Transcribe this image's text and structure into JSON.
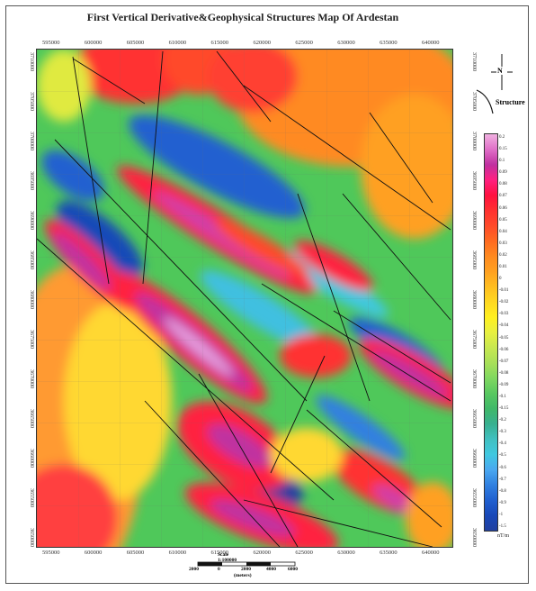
{
  "title": "First Vertical Derivative&Geophysical Structures Map Of Ardestan",
  "x_ticks": [
    "595000",
    "600000",
    "605000",
    "610000",
    "615000",
    "620000",
    "625000",
    "630000",
    "635000",
    "640000"
  ],
  "y_ticks": [
    "3710000",
    "3705000",
    "3700000",
    "3695000",
    "3690000",
    "3685000",
    "3680000",
    "3675000",
    "3670000",
    "3665000",
    "3660000",
    "3655000",
    "3650000"
  ],
  "legend": {
    "north": "N",
    "structure_label": "Structure"
  },
  "colorbar": {
    "unit": "nT/m",
    "labels": [
      "0.2",
      "0.15",
      "0.1",
      "0.09",
      "0.08",
      "0.07",
      "0.06",
      "0.05",
      "0.04",
      "0.03",
      "0.02",
      "0.01",
      "0",
      "-0.01",
      "-0.02",
      "-0.03",
      "-0.04",
      "-0.05",
      "-0.06",
      "-0.07",
      "-0.08",
      "-0.09",
      "-0.1",
      "-0.15",
      "-0.2",
      "-0.3",
      "-0.4",
      "-0.5",
      "-0.6",
      "-0.7",
      "-0.8",
      "-0.9",
      "-1",
      "-1.5"
    ],
    "colors": [
      "#f0b0e0",
      "#e070c8",
      "#c030a0",
      "#ff2080",
      "#ff1040",
      "#ff3030",
      "#ff4a2a",
      "#ff6a20",
      "#ff8a20",
      "#ffa020",
      "#ffbe20",
      "#ffd820",
      "#fff020",
      "#e8f040",
      "#c8e850",
      "#a8e058",
      "#80d860",
      "#58c860",
      "#40b868",
      "#38b090",
      "#40c0c0",
      "#40c8e0",
      "#4aa8f0",
      "#3080e0",
      "#2060d0",
      "#1848b8",
      "#2040a0"
    ]
  },
  "scale": {
    "title": "Scale 1:100000",
    "labels": [
      "2000",
      "0",
      "2000",
      "4000",
      "6000"
    ],
    "units": "(meters)"
  }
}
